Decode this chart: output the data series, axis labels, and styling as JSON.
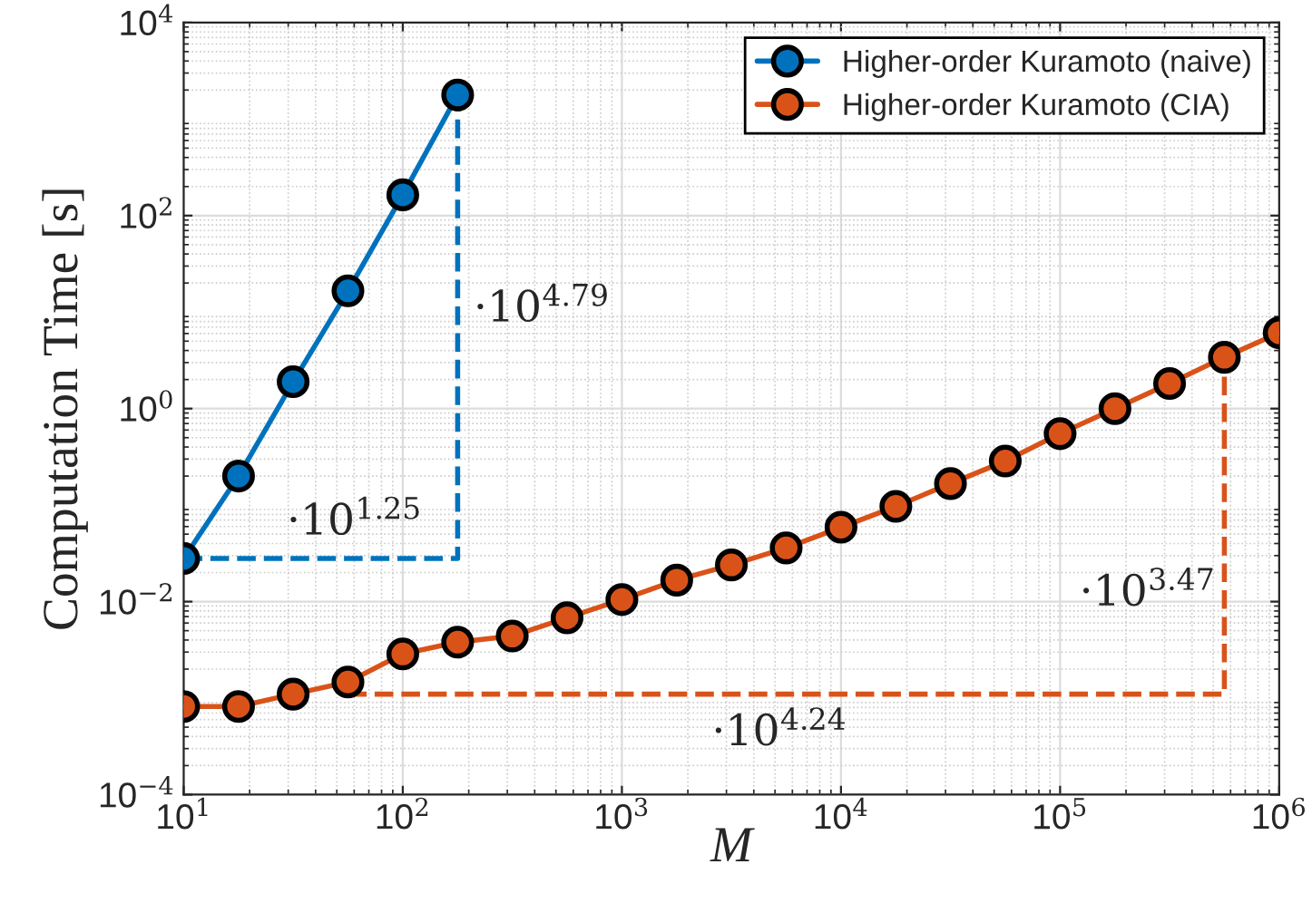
{
  "chart_data": {
    "type": "line",
    "xlabel": "M",
    "ylabel": "Computation Time [s]",
    "log": "xy",
    "grid": true,
    "legend": "top right",
    "marker": "circle",
    "line_style": "solid",
    "xlim": [
      10,
      1000000
    ],
    "ylim": [
      0.0001,
      10000
    ],
    "xticks": [
      {
        "value": 10,
        "label": "10$^{1}$"
      },
      {
        "value": 100,
        "label": "10$^{2}$"
      },
      {
        "value": 1000,
        "label": "10$^{3}$"
      },
      {
        "value": 10000,
        "label": "10$^{4}$"
      },
      {
        "value": 100000,
        "label": "10$^{5}$"
      },
      {
        "value": 1000000,
        "label": "10$^{6}$"
      }
    ],
    "yticks": [
      {
        "value": 0.0001,
        "label": "10$^{−4}$"
      },
      {
        "value": 0.01,
        "label": "10$^{−2}$"
      },
      {
        "value": 1,
        "label": "10$^{0}$"
      },
      {
        "value": 100,
        "label": "10$^{2}$"
      },
      {
        "value": 10000,
        "label": "10$^{4}$"
      }
    ],
    "series": [
      {
        "name": "Higher-order Kuramoto (naive)",
        "color": "#0072bd",
        "x": [
          10,
          17.8,
          31.6,
          56.2,
          100,
          178
        ],
        "values": [
          0.028,
          0.2,
          1.9,
          16.6,
          164,
          1780
        ]
      },
      {
        "name": "Higher-order Kuramoto (CIA)",
        "color": "#d95319",
        "x": [
          10,
          17.8,
          31.6,
          56.2,
          100,
          178,
          316,
          562,
          1000,
          1780,
          3160,
          5620,
          10000,
          17800,
          31600,
          56200,
          100000,
          178000,
          316000,
          562000,
          1000000
        ],
        "values": [
          0.00082,
          0.00082,
          0.0011,
          0.00147,
          0.00287,
          0.0038,
          0.0044,
          0.0068,
          0.0105,
          0.0167,
          0.024,
          0.036,
          0.059,
          0.097,
          0.167,
          0.286,
          0.55,
          1.0,
          1.82,
          3.4,
          6.1
        ]
      },
      {
        "type": "line",
        "color": "#0072bd",
        "line_style": "dashed",
        "marker": "none",
        "x": [
          10,
          178,
          178
        ],
        "values": [
          0.028,
          0.028,
          1780
        ]
      },
      {
        "type": "line",
        "color": "#d95319",
        "line_style": "dashed",
        "marker": "none",
        "x": [
          56.2,
          562000,
          562000
        ],
        "values": [
          0.0011,
          0.0011,
          3.4
        ]
      }
    ],
    "annotations": [
      "·10$^{1.25}$",
      "·10$^{4.79}$",
      "·10$^{3.47}$",
      "·10$^{4.24}$"
    ]
  }
}
